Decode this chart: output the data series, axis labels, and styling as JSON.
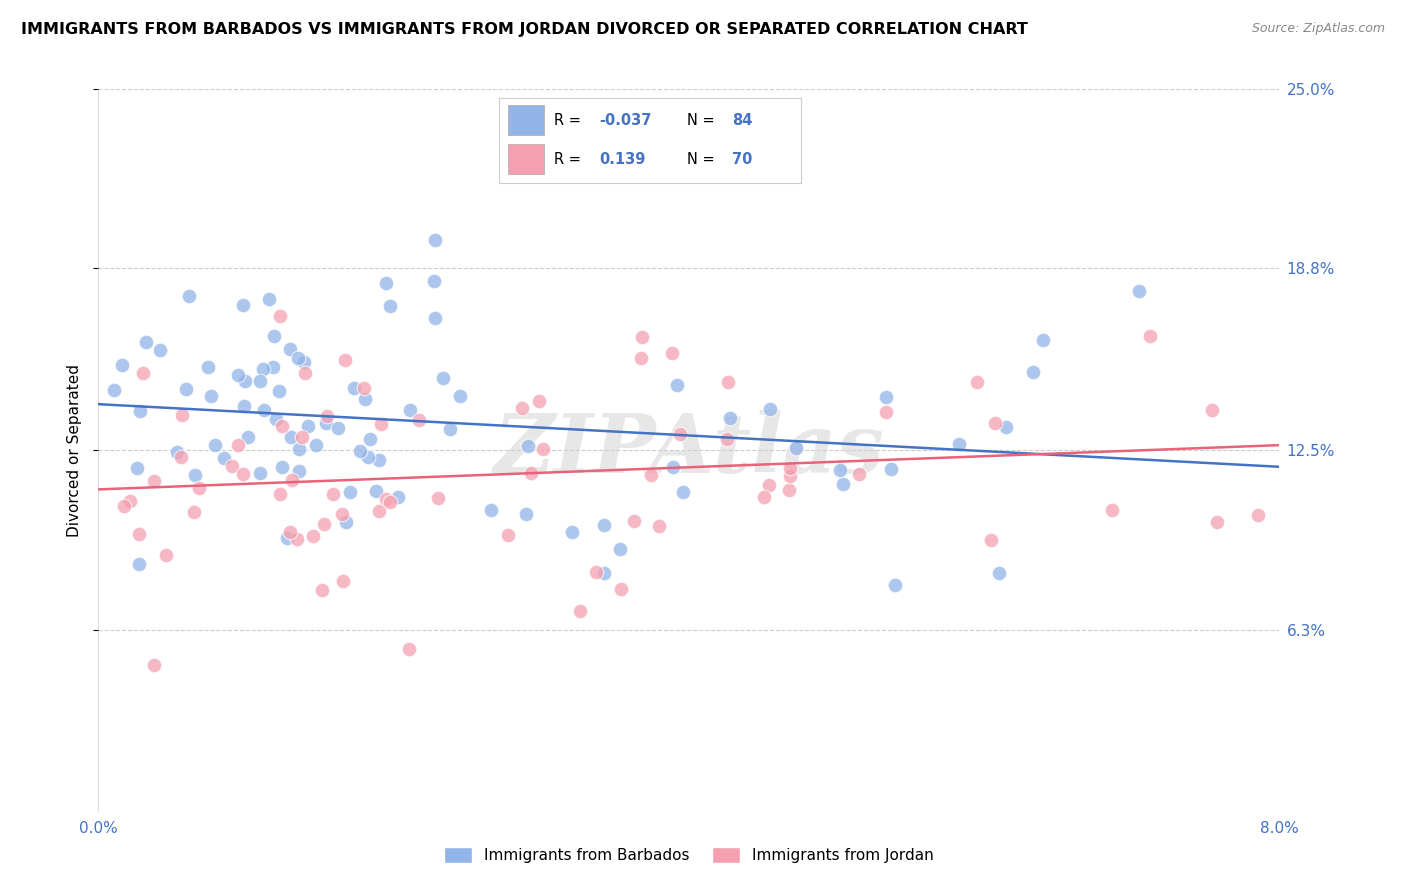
{
  "title": "IMMIGRANTS FROM BARBADOS VS IMMIGRANTS FROM JORDAN DIVORCED OR SEPARATED CORRELATION CHART",
  "source": "Source: ZipAtlas.com",
  "ylabel": "Divorced or Separated",
  "xlim": [
    0.0,
    0.08
  ],
  "ylim": [
    0.0,
    0.25
  ],
  "yticks": [
    0.063,
    0.125,
    0.188,
    0.25
  ],
  "ytick_labels": [
    "6.3%",
    "12.5%",
    "18.8%",
    "25.0%"
  ],
  "xtick_labels": [
    "0.0%",
    "",
    "",
    "",
    "8.0%"
  ],
  "r_barbados": -0.037,
  "n_barbados": 84,
  "r_jordan": 0.139,
  "n_jordan": 70,
  "color_barbados": "#92b4e8",
  "color_jordan": "#f4a0b0",
  "trendline_barbados": "#4472c4",
  "trendline_jordan": "#e8627a",
  "watermark": "ZIPAtlas",
  "legend_r1": "R = ",
  "legend_v1": "-0.037",
  "legend_n1": "N = ",
  "legend_nv1": "84",
  "legend_r2": "R = ",
  "legend_v2": "0.139",
  "legend_n2": "N = ",
  "legend_nv2": "70",
  "label_barbados": "Immigrants from Barbados",
  "label_jordan": "Immigrants from Jordan"
}
